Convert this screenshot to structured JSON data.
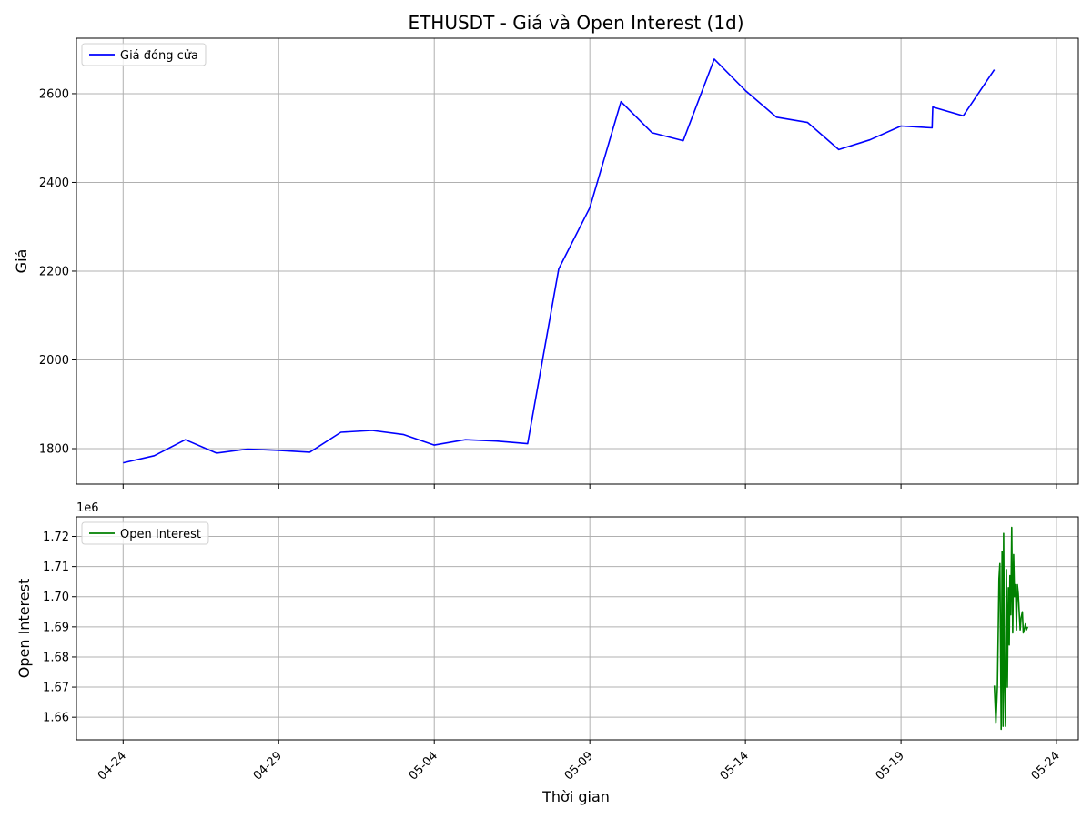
{
  "chart_data": {
    "type": "line",
    "title": "ETHUSDT - Giá và Open Interest (1d)",
    "xlabel": "Thời gian",
    "x_ticks": [
      "04-24",
      "04-29",
      "05-04",
      "05-09",
      "05-14",
      "05-19",
      "05-24"
    ],
    "x_tick_days": [
      0,
      5,
      10,
      15,
      20,
      25,
      30
    ],
    "x_range_days": [
      -1.5,
      30.7
    ],
    "grid": true,
    "panels": [
      {
        "ylabel": "Giá",
        "ylim": [
          1720,
          2725
        ],
        "y_ticks": [
          1800,
          2000,
          2200,
          2400,
          2600
        ],
        "y_tick_labels": [
          "1800",
          "2000",
          "2200",
          "2400",
          "2600"
        ],
        "legend_position": "top-left",
        "series": [
          {
            "name": "Giá đóng cửa",
            "color": "#0000ff",
            "x_days": [
              0,
              1,
              2,
              3,
              4,
              5,
              6,
              7,
              8,
              9,
              10,
              11,
              12,
              13,
              14,
              15,
              16,
              17,
              18,
              19,
              20,
              21,
              22,
              23,
              24,
              25,
              26,
              26.02,
              27,
              28
            ],
            "values": [
              1768,
              1784,
              1820,
              1790,
              1799,
              1796,
              1792,
              1837,
              1841,
              1832,
              1808,
              1820,
              1817,
              1811,
              2205,
              2343,
              2582,
              2512,
              2494,
              2678,
              2607,
              2547,
              2535,
              2474,
              2496,
              2527,
              2523,
              2570,
              2550,
              2654
            ]
          }
        ]
      },
      {
        "ylabel": "Open Interest",
        "offset_label": "1e6",
        "ylim": [
          1.6525,
          1.7265
        ],
        "y_ticks": [
          1.66,
          1.67,
          1.68,
          1.69,
          1.7,
          1.71,
          1.72
        ],
        "y_tick_labels": [
          "1.66",
          "1.67",
          "1.68",
          "1.69",
          "1.70",
          "1.71",
          "1.72"
        ],
        "legend_position": "top-left",
        "series": [
          {
            "name": "Open Interest",
            "color": "#008000",
            "x_days": [
              28.0,
              28.05,
              28.1,
              28.15,
              28.18,
              28.22,
              28.25,
              28.28,
              28.3,
              28.33,
              28.36,
              28.39,
              28.42,
              28.45,
              28.48,
              28.5,
              28.53,
              28.56,
              28.59,
              28.62,
              28.65,
              28.68,
              28.71,
              28.74,
              28.77,
              28.8,
              28.83,
              28.86,
              28.9,
              28.93,
              28.96,
              29.0,
              29.03,
              29.07
            ],
            "values": [
              1.6705,
              1.658,
              1.6705,
              1.706,
              1.711,
              1.656,
              1.715,
              1.657,
              1.721,
              1.67,
              1.657,
              1.709,
              1.67,
              1.703,
              1.684,
              1.707,
              1.694,
              1.723,
              1.688,
              1.714,
              1.7,
              1.704,
              1.689,
              1.704,
              1.701,
              1.695,
              1.689,
              1.693,
              1.695,
              1.688,
              1.689,
              1.691,
              1.689,
              1.69
            ]
          }
        ]
      }
    ]
  }
}
